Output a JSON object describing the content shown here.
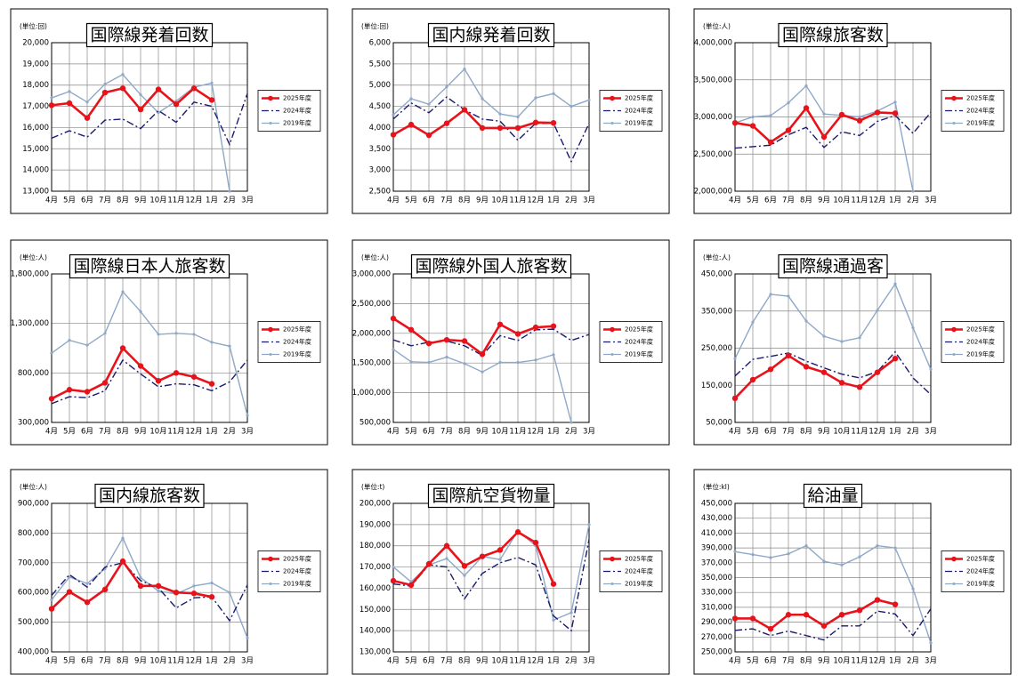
{
  "chart_data": [
    {
      "type": "line",
      "title": "国際線発着回数",
      "unit": "(単位:回)",
      "legend": "right",
      "grid": true,
      "categories": [
        "4月",
        "5月",
        "6月",
        "7月",
        "8月",
        "9月",
        "10月",
        "11月",
        "12月",
        "1月",
        "2月",
        "3月"
      ],
      "ylim": [
        13000,
        20000
      ],
      "yticks": [
        {
          "value": 13000,
          "label": "13,000"
        },
        {
          "value": 14000,
          "label": "14,000"
        },
        {
          "value": 15000,
          "label": "15,000"
        },
        {
          "value": 16000,
          "label": "16,000"
        },
        {
          "value": 17000,
          "label": "17,000"
        },
        {
          "value": 18000,
          "label": "18,000"
        },
        {
          "value": 19000,
          "label": "19,000"
        },
        {
          "value": 20000,
          "label": "20,000"
        }
      ],
      "series": [
        {
          "name": "2025年度",
          "color": "#e8131a",
          "line_style": "solid",
          "markers": "large",
          "values": [
            17050,
            17150,
            16450,
            17650,
            17850,
            16850,
            17800,
            17100,
            17850,
            17300,
            null,
            null
          ]
        },
        {
          "name": "2024年度",
          "color": "#1a1a6e",
          "line_style": "dashdot",
          "markers": "none",
          "values": [
            15500,
            15850,
            15550,
            16350,
            16400,
            15950,
            16800,
            16250,
            17200,
            17000,
            15200,
            17600
          ]
        },
        {
          "name": "2019年度",
          "color": "#8fa8c8",
          "line_style": "solid",
          "markers": "small",
          "values": [
            17400,
            17700,
            17200,
            18050,
            18500,
            17550,
            16700,
            17250,
            17900,
            18100,
            13000,
            null
          ]
        }
      ]
    },
    {
      "type": "line",
      "title": "国内線発着回数",
      "unit": "(単位:回)",
      "legend": "right",
      "grid": true,
      "categories": [
        "4月",
        "5月",
        "6月",
        "7月",
        "8月",
        "9月",
        "10月",
        "11月",
        "12月",
        "1月",
        "2月",
        "3月"
      ],
      "ylim": [
        2500,
        6000
      ],
      "yticks": [
        {
          "value": 2500,
          "label": "2,500"
        },
        {
          "value": 3000,
          "label": "3,000"
        },
        {
          "value": 3500,
          "label": "3,500"
        },
        {
          "value": 4000,
          "label": "4,000"
        },
        {
          "value": 4500,
          "label": "4,500"
        },
        {
          "value": 5000,
          "label": "5,000"
        },
        {
          "value": 5500,
          "label": "5,500"
        },
        {
          "value": 6000,
          "label": "6,000"
        }
      ],
      "series": [
        {
          "name": "2025年度",
          "color": "#e8131a",
          "line_style": "solid",
          "markers": "large",
          "values": [
            3830,
            4070,
            3820,
            4100,
            4420,
            3990,
            3990,
            3990,
            4120,
            4110,
            null,
            null
          ]
        },
        {
          "name": "2024年度",
          "color": "#1a1a6e",
          "line_style": "dashdot",
          "markers": "none",
          "values": [
            4200,
            4580,
            4350,
            4720,
            4420,
            4200,
            4150,
            3700,
            4100,
            4100,
            3200,
            4100
          ]
        },
        {
          "name": "2019年度",
          "color": "#8fa8c8",
          "line_style": "solid",
          "markers": "small",
          "values": [
            4300,
            4680,
            4550,
            4960,
            5380,
            4680,
            4320,
            4250,
            4700,
            4800,
            4500,
            4650
          ]
        }
      ]
    },
    {
      "type": "line",
      "title": "国際線旅客数",
      "unit": "(単位:人)",
      "legend": "right",
      "grid": true,
      "categories": [
        "4月",
        "5月",
        "6月",
        "7月",
        "8月",
        "9月",
        "10月",
        "11月",
        "12月",
        "1月",
        "2月",
        "3月"
      ],
      "ylim": [
        2000000,
        4000000
      ],
      "yticks": [
        {
          "value": 2000000,
          "label": "2,000,000"
        },
        {
          "value": 2500000,
          "label": "2,500,000"
        },
        {
          "value": 3000000,
          "label": "3,000,000"
        },
        {
          "value": 3500000,
          "label": "3,500,000"
        },
        {
          "value": 4000000,
          "label": "4,000,000"
        }
      ],
      "series": [
        {
          "name": "2025年度",
          "color": "#e8131a",
          "line_style": "solid",
          "markers": "large",
          "values": [
            2920000,
            2880000,
            2660000,
            2820000,
            3120000,
            2730000,
            3030000,
            2950000,
            3060000,
            3050000,
            null,
            null
          ]
        },
        {
          "name": "2024年度",
          "color": "#1a1a6e",
          "line_style": "dashdot",
          "markers": "none",
          "values": [
            2580000,
            2600000,
            2620000,
            2760000,
            2860000,
            2590000,
            2800000,
            2750000,
            2940000,
            3020000,
            2780000,
            3060000
          ]
        },
        {
          "name": "2019年度",
          "color": "#8fa8c8",
          "line_style": "solid",
          "markers": "small",
          "values": [
            2920000,
            3000000,
            3020000,
            3190000,
            3420000,
            3040000,
            3020000,
            3000000,
            3080000,
            3200000,
            2000000,
            null
          ]
        }
      ]
    },
    {
      "type": "line",
      "title": "国際線日本人旅客数",
      "unit": "(単位:人)",
      "legend": "right",
      "grid": true,
      "categories": [
        "4月",
        "5月",
        "6月",
        "7月",
        "8月",
        "9月",
        "10月",
        "11月",
        "12月",
        "1月",
        "2月",
        "3月"
      ],
      "ylim": [
        300000,
        1800000
      ],
      "yticks": [
        {
          "value": 300000,
          "label": "300,000"
        },
        {
          "value": 800000,
          "label": "800,000"
        },
        {
          "value": 1300000,
          "label": "1,300,000"
        },
        {
          "value": 1800000,
          "label": "1,800,000"
        }
      ],
      "series": [
        {
          "name": "2025年度",
          "color": "#e8131a",
          "line_style": "solid",
          "markers": "large",
          "values": [
            540000,
            630000,
            610000,
            700000,
            1050000,
            870000,
            720000,
            800000,
            760000,
            690000,
            null,
            null
          ]
        },
        {
          "name": "2024年度",
          "color": "#1a1a6e",
          "line_style": "dashdot",
          "markers": "none",
          "values": [
            490000,
            560000,
            550000,
            620000,
            930000,
            790000,
            660000,
            690000,
            680000,
            620000,
            710000,
            930000
          ]
        },
        {
          "name": "2019年度",
          "color": "#8fa8c8",
          "line_style": "solid",
          "markers": "small",
          "values": [
            1000000,
            1130000,
            1080000,
            1200000,
            1620000,
            1420000,
            1190000,
            1200000,
            1190000,
            1110000,
            1070000,
            370000
          ]
        }
      ]
    },
    {
      "type": "line",
      "title": "国際線外国人旅客数",
      "unit": "(単位:人)",
      "legend": "right",
      "grid": true,
      "categories": [
        "4月",
        "5月",
        "6月",
        "7月",
        "8月",
        "9月",
        "10月",
        "11月",
        "12月",
        "1月",
        "2月",
        "3月"
      ],
      "ylim": [
        500000,
        3000000
      ],
      "yticks": [
        {
          "value": 500000,
          "label": "500,000"
        },
        {
          "value": 1000000,
          "label": "1,000,000"
        },
        {
          "value": 1500000,
          "label": "1,500,000"
        },
        {
          "value": 2000000,
          "label": "2,000,000"
        },
        {
          "value": 2500000,
          "label": "2,500,000"
        },
        {
          "value": 3000000,
          "label": "3,000,000"
        }
      ],
      "series": [
        {
          "name": "2025年度",
          "color": "#e8131a",
          "line_style": "solid",
          "markers": "large",
          "values": [
            2250000,
            2060000,
            1830000,
            1890000,
            1870000,
            1650000,
            2150000,
            1990000,
            2100000,
            2120000,
            null,
            null
          ]
        },
        {
          "name": "2024年度",
          "color": "#1a1a6e",
          "line_style": "dashdot",
          "markers": "none",
          "values": [
            1890000,
            1790000,
            1850000,
            1870000,
            1790000,
            1630000,
            1960000,
            1880000,
            2060000,
            2070000,
            1880000,
            1980000
          ]
        },
        {
          "name": "2019年度",
          "color": "#8fa8c8",
          "line_style": "solid",
          "markers": "small",
          "values": [
            1730000,
            1520000,
            1510000,
            1600000,
            1490000,
            1350000,
            1510000,
            1510000,
            1550000,
            1640000,
            500000,
            null
          ]
        }
      ]
    },
    {
      "type": "line",
      "title": "国際線通過客",
      "unit": "(単位:人)",
      "legend": "right",
      "grid": true,
      "categories": [
        "4月",
        "5月",
        "6月",
        "7月",
        "8月",
        "9月",
        "10月",
        "11月",
        "12月",
        "1月",
        "2月",
        "3月"
      ],
      "ylim": [
        50000,
        450000
      ],
      "yticks": [
        {
          "value": 50000,
          "label": "50,000"
        },
        {
          "value": 150000,
          "label": "150,000"
        },
        {
          "value": 250000,
          "label": "250,000"
        },
        {
          "value": 350000,
          "label": "350,000"
        },
        {
          "value": 450000,
          "label": "450,000"
        }
      ],
      "series": [
        {
          "name": "2025年度",
          "color": "#e8131a",
          "line_style": "solid",
          "markers": "large",
          "values": [
            115000,
            165000,
            193000,
            230000,
            200000,
            185000,
            157000,
            145000,
            185000,
            222000,
            null,
            null
          ]
        },
        {
          "name": "2024年度",
          "color": "#1a1a6e",
          "line_style": "dashdot",
          "markers": "none",
          "values": [
            175000,
            220000,
            228000,
            237000,
            215000,
            197000,
            180000,
            170000,
            187000,
            240000,
            170000,
            125000
          ]
        },
        {
          "name": "2019年度",
          "color": "#8fa8c8",
          "line_style": "solid",
          "markers": "small",
          "values": [
            222000,
            320000,
            395000,
            390000,
            323000,
            282000,
            268000,
            278000,
            352000,
            423000,
            305000,
            193000
          ]
        }
      ]
    },
    {
      "type": "line",
      "title": "国内線旅客数",
      "unit": "(単位:人)",
      "legend": "right",
      "grid": true,
      "categories": [
        "4月",
        "5月",
        "6月",
        "7月",
        "8月",
        "9月",
        "10月",
        "11月",
        "12月",
        "1月",
        "2月",
        "3月"
      ],
      "ylim": [
        400000,
        900000
      ],
      "yticks": [
        {
          "value": 400000,
          "label": "400,000"
        },
        {
          "value": 500000,
          "label": "500,000"
        },
        {
          "value": 600000,
          "label": "600,000"
        },
        {
          "value": 700000,
          "label": "700,000"
        },
        {
          "value": 800000,
          "label": "800,000"
        },
        {
          "value": 900000,
          "label": "900,000"
        }
      ],
      "series": [
        {
          "name": "2025年度",
          "color": "#e8131a",
          "line_style": "solid",
          "markers": "large",
          "values": [
            545000,
            602000,
            567000,
            610000,
            705000,
            622000,
            622000,
            600000,
            597000,
            585000,
            null,
            null
          ]
        },
        {
          "name": "2024年度",
          "color": "#1a1a6e",
          "line_style": "dashdot",
          "markers": "none",
          "values": [
            590000,
            660000,
            618000,
            685000,
            700000,
            640000,
            615000,
            548000,
            582000,
            585000,
            505000,
            625000
          ]
        },
        {
          "name": "2019年度",
          "color": "#8fa8c8",
          "line_style": "solid",
          "markers": "small",
          "values": [
            575000,
            652000,
            630000,
            680000,
            783000,
            650000,
            605000,
            595000,
            622000,
            632000,
            600000,
            447000
          ]
        }
      ]
    },
    {
      "type": "line",
      "title": "国際航空貨物量",
      "unit": "(単位:t)",
      "legend": "right",
      "grid": true,
      "categories": [
        "4月",
        "5月",
        "6月",
        "7月",
        "8月",
        "9月",
        "10月",
        "11月",
        "12月",
        "1月",
        "2月",
        "3月"
      ],
      "ylim": [
        130000,
        200000
      ],
      "yticks": [
        {
          "value": 130000,
          "label": "130,000"
        },
        {
          "value": 140000,
          "label": "140,000"
        },
        {
          "value": 150000,
          "label": "150,000"
        },
        {
          "value": 160000,
          "label": "160,000"
        },
        {
          "value": 170000,
          "label": "170,000"
        },
        {
          "value": 180000,
          "label": "180,000"
        },
        {
          "value": 190000,
          "label": "190,000"
        },
        {
          "value": 200000,
          "label": "200,000"
        }
      ],
      "series": [
        {
          "name": "2025年度",
          "color": "#e8131a",
          "line_style": "solid",
          "markers": "large",
          "values": [
            163500,
            161500,
            171500,
            180000,
            170500,
            175000,
            178000,
            186500,
            181500,
            162000,
            null,
            null
          ]
        },
        {
          "name": "2024年度",
          "color": "#1a1a6e",
          "line_style": "dashdot",
          "markers": "none",
          "values": [
            162000,
            161000,
            171000,
            170000,
            155000,
            167000,
            172000,
            174500,
            171000,
            147000,
            140000,
            183000
          ]
        },
        {
          "name": "2019年度",
          "color": "#8fa8c8",
          "line_style": "solid",
          "markers": "small",
          "values": [
            170000,
            163000,
            171000,
            174000,
            166000,
            175000,
            173500,
            187000,
            180000,
            145000,
            148500,
            190000
          ]
        }
      ]
    },
    {
      "type": "line",
      "title": "給油量",
      "unit": "(単位:kl)",
      "legend": "right",
      "grid": true,
      "categories": [
        "4月",
        "5月",
        "6月",
        "7月",
        "8月",
        "9月",
        "10月",
        "11月",
        "12月",
        "1月",
        "2月",
        "3月"
      ],
      "ylim": [
        250000,
        450000
      ],
      "yticks": [
        {
          "value": 250000,
          "label": "250,000"
        },
        {
          "value": 270000,
          "label": "270,000"
        },
        {
          "value": 290000,
          "label": "290,000"
        },
        {
          "value": 310000,
          "label": "310,000"
        },
        {
          "value": 330000,
          "label": "330,000"
        },
        {
          "value": 350000,
          "label": "350,000"
        },
        {
          "value": 370000,
          "label": "370,000"
        },
        {
          "value": 390000,
          "label": "390,000"
        },
        {
          "value": 410000,
          "label": "410,000"
        },
        {
          "value": 430000,
          "label": "430,000"
        },
        {
          "value": 450000,
          "label": "450,000"
        }
      ],
      "series": [
        {
          "name": "2025年度",
          "color": "#e8131a",
          "line_style": "solid",
          "markers": "large",
          "values": [
            295000,
            295000,
            281000,
            300000,
            300000,
            285000,
            300000,
            306000,
            320000,
            314000,
            null,
            null
          ]
        },
        {
          "name": "2024年度",
          "color": "#1a1a6e",
          "line_style": "dashdot",
          "markers": "none",
          "values": [
            279000,
            281000,
            272000,
            278000,
            272000,
            266000,
            285000,
            285000,
            305000,
            301000,
            272000,
            308000
          ]
        },
        {
          "name": "2019年度",
          "color": "#8fa8c8",
          "line_style": "solid",
          "markers": "small",
          "values": [
            385000,
            381000,
            377000,
            382000,
            393000,
            372000,
            367000,
            378000,
            393000,
            390000,
            335000,
            262000
          ]
        }
      ]
    }
  ]
}
